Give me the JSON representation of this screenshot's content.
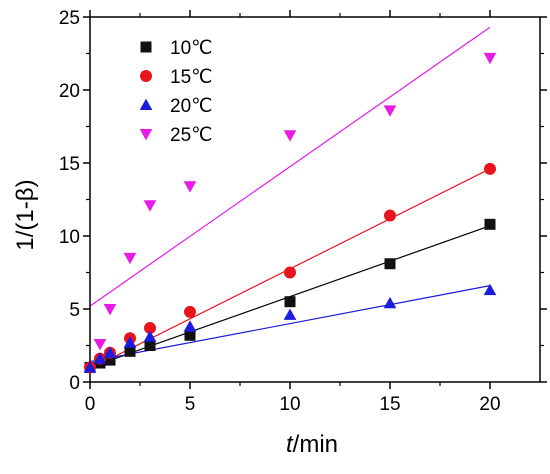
{
  "chart_data": {
    "type": "scatter",
    "title": "",
    "xlabel_italic": "t",
    "xlabel_rest": "/min",
    "ylabel": "1/(1-β)",
    "xlim": [
      0,
      22.5
    ],
    "ylim": [
      0,
      25
    ],
    "xticks": [
      "0",
      "5",
      "10",
      "15",
      "20"
    ],
    "yticks": [
      "0",
      "5",
      "10",
      "15",
      "20",
      "25"
    ],
    "legend_position": "top-left",
    "series": [
      {
        "name": "10℃",
        "marker": "square",
        "color": "#111111",
        "line_color": "#000000",
        "x": [
          0,
          0.5,
          1,
          2,
          3,
          5,
          10,
          15,
          20
        ],
        "y": [
          1.0,
          1.3,
          1.5,
          2.1,
          2.5,
          3.2,
          5.5,
          8.1,
          10.8
        ],
        "fit": {
          "x": [
            0,
            20
          ],
          "y": [
            1.0,
            10.7
          ]
        }
      },
      {
        "name": "15℃",
        "marker": "circle",
        "color": "#e8141b",
        "line_color": "#e8141b",
        "x": [
          0,
          0.5,
          1,
          2,
          3,
          5,
          10,
          15,
          20
        ],
        "y": [
          1.0,
          1.6,
          2.0,
          3.0,
          3.7,
          4.8,
          7.5,
          11.4,
          14.6
        ],
        "fit": {
          "x": [
            0,
            20
          ],
          "y": [
            0.9,
            14.6
          ]
        }
      },
      {
        "name": "20℃",
        "marker": "triangle-up",
        "color": "#1c1cdd",
        "line_color": "#1c1cdd",
        "x": [
          0,
          0.5,
          1,
          2,
          3,
          5,
          10,
          15,
          20
        ],
        "y": [
          1.0,
          1.6,
          2.0,
          2.7,
          3.1,
          3.8,
          4.6,
          5.4,
          6.3
        ],
        "fit": {
          "x": [
            0,
            20
          ],
          "y": [
            1.4,
            6.6
          ]
        }
      },
      {
        "name": "25℃",
        "marker": "triangle-down",
        "color": "#e61ce6",
        "line_color": "#e61ce6",
        "x": [
          0.5,
          1,
          2,
          3,
          5,
          10,
          15,
          20
        ],
        "y": [
          2.6,
          5.0,
          8.5,
          12.1,
          13.4,
          16.9,
          18.6,
          22.2
        ],
        "fit": {
          "x": [
            0,
            20
          ],
          "y": [
            5.2,
            24.3
          ]
        }
      }
    ]
  }
}
